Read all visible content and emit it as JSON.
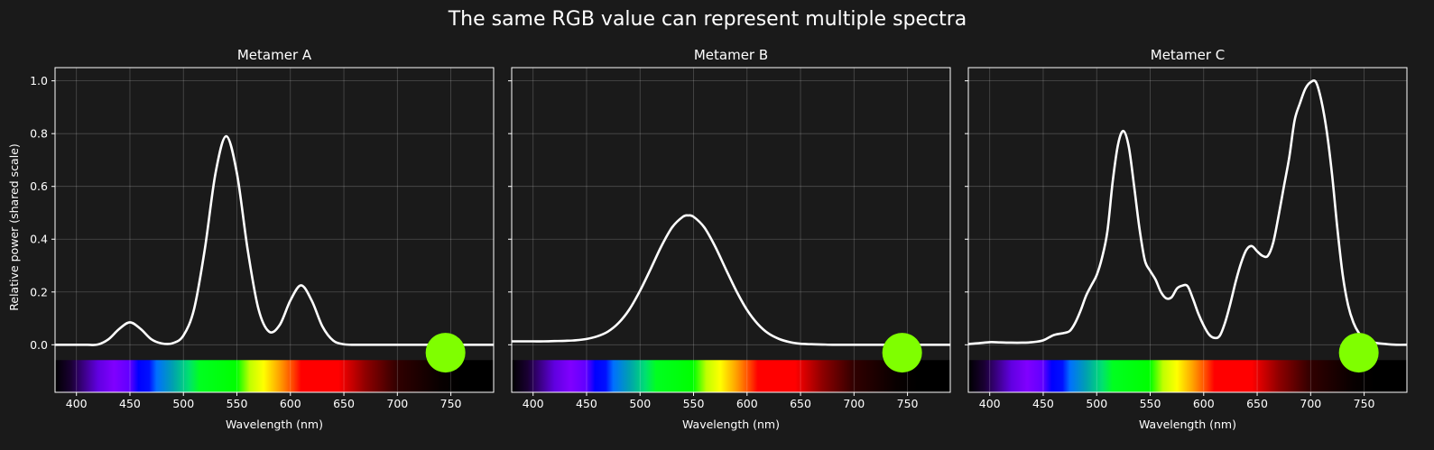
{
  "figure": {
    "title": "The same RGB value can represent multiple spectra",
    "background": "#1a1a1a"
  },
  "chart_data": [
    {
      "type": "line",
      "title": "Metamer A",
      "xlabel": "Wavelength (nm)",
      "ylabel": "Relative power (shared scale)",
      "xlim": [
        380,
        790
      ],
      "ylim": [
        -0.18,
        1.05
      ],
      "xticks": [
        400,
        450,
        500,
        550,
        600,
        650,
        700,
        750
      ],
      "yticks": [
        "0.0",
        "0.2",
        "0.4",
        "0.6",
        "0.8",
        "1.0"
      ],
      "grid": true,
      "line_color": "#ffffff",
      "points": [
        [
          380,
          0
        ],
        [
          390,
          0
        ],
        [
          400,
          0
        ],
        [
          410,
          0
        ],
        [
          420,
          0.001
        ],
        [
          430,
          0.021
        ],
        [
          440,
          0.06
        ],
        [
          450,
          0.085
        ],
        [
          460,
          0.06
        ],
        [
          470,
          0.021
        ],
        [
          480,
          0.005
        ],
        [
          490,
          0.006
        ],
        [
          500,
          0.035
        ],
        [
          510,
          0.136
        ],
        [
          520,
          0.362
        ],
        [
          530,
          0.65
        ],
        [
          540,
          0.79
        ],
        [
          550,
          0.65
        ],
        [
          560,
          0.362
        ],
        [
          570,
          0.138
        ],
        [
          580,
          0.05
        ],
        [
          590,
          0.075
        ],
        [
          600,
          0.168
        ],
        [
          610,
          0.225
        ],
        [
          620,
          0.167
        ],
        [
          630,
          0.069
        ],
        [
          640,
          0.016
        ],
        [
          650,
          0.002
        ],
        [
          660,
          0
        ],
        [
          670,
          0
        ],
        [
          680,
          0
        ],
        [
          690,
          0
        ],
        [
          700,
          0
        ],
        [
          710,
          0
        ],
        [
          720,
          0
        ],
        [
          730,
          0
        ],
        [
          740,
          0
        ],
        [
          750,
          0
        ],
        [
          760,
          0
        ],
        [
          770,
          0
        ],
        [
          780,
          0
        ],
        [
          790,
          0
        ]
      ],
      "rgb_swatch": {
        "color": "#7fff00",
        "x": 745,
        "y": -0.03
      },
      "spectrum_strip": {
        "y_range": [
          -0.18,
          -0.058
        ]
      }
    },
    {
      "type": "line",
      "title": "Metamer B",
      "xlabel": "Wavelength (nm)",
      "xlim": [
        380,
        790
      ],
      "ylim": [
        -0.18,
        1.05
      ],
      "xticks": [
        400,
        450,
        500,
        550,
        600,
        650,
        700,
        750
      ],
      "grid": true,
      "line_color": "#ffffff",
      "points": [
        [
          380,
          0.013
        ],
        [
          390,
          0.013
        ],
        [
          400,
          0.013
        ],
        [
          410,
          0.013
        ],
        [
          420,
          0.014
        ],
        [
          430,
          0.015
        ],
        [
          440,
          0.017
        ],
        [
          450,
          0.022
        ],
        [
          460,
          0.032
        ],
        [
          470,
          0.05
        ],
        [
          480,
          0.083
        ],
        [
          490,
          0.134
        ],
        [
          500,
          0.205
        ],
        [
          510,
          0.288
        ],
        [
          520,
          0.374
        ],
        [
          530,
          0.445
        ],
        [
          540,
          0.485
        ],
        [
          545,
          0.49
        ],
        [
          550,
          0.485
        ],
        [
          560,
          0.445
        ],
        [
          570,
          0.374
        ],
        [
          580,
          0.288
        ],
        [
          590,
          0.204
        ],
        [
          600,
          0.132
        ],
        [
          610,
          0.079
        ],
        [
          620,
          0.043
        ],
        [
          630,
          0.022
        ],
        [
          640,
          0.01
        ],
        [
          650,
          0.004
        ],
        [
          660,
          0.002
        ],
        [
          670,
          0.001
        ],
        [
          680,
          0
        ],
        [
          690,
          0
        ],
        [
          700,
          0
        ],
        [
          710,
          0
        ],
        [
          720,
          0
        ],
        [
          730,
          0
        ],
        [
          740,
          0
        ],
        [
          750,
          0
        ],
        [
          760,
          0
        ],
        [
          770,
          0
        ],
        [
          780,
          0
        ],
        [
          790,
          0
        ]
      ],
      "rgb_swatch": {
        "color": "#7fff00",
        "x": 745,
        "y": -0.03
      },
      "spectrum_strip": {
        "y_range": [
          -0.18,
          -0.058
        ]
      }
    },
    {
      "type": "line",
      "title": "Metamer C",
      "xlabel": "Wavelength (nm)",
      "xlim": [
        380,
        790
      ],
      "ylim": [
        -0.18,
        1.05
      ],
      "xticks": [
        400,
        450,
        500,
        550,
        600,
        650,
        700,
        750
      ],
      "grid": true,
      "line_color": "#ffffff",
      "points": [
        [
          380,
          0.003
        ],
        [
          390,
          0.006
        ],
        [
          400,
          0.01
        ],
        [
          410,
          0.009
        ],
        [
          420,
          0.008
        ],
        [
          430,
          0.008
        ],
        [
          440,
          0.01
        ],
        [
          450,
          0.017
        ],
        [
          460,
          0.037
        ],
        [
          470,
          0.045
        ],
        [
          475,
          0.053
        ],
        [
          480,
          0.084
        ],
        [
          485,
          0.13
        ],
        [
          490,
          0.185
        ],
        [
          495,
          0.225
        ],
        [
          500,
          0.264
        ],
        [
          505,
          0.33
        ],
        [
          510,
          0.43
        ],
        [
          515,
          0.62
        ],
        [
          520,
          0.76
        ],
        [
          525,
          0.81
        ],
        [
          530,
          0.75
        ],
        [
          535,
          0.6
        ],
        [
          540,
          0.44
        ],
        [
          545,
          0.32
        ],
        [
          550,
          0.28
        ],
        [
          555,
          0.247
        ],
        [
          560,
          0.2
        ],
        [
          565,
          0.176
        ],
        [
          570,
          0.18
        ],
        [
          575,
          0.213
        ],
        [
          580,
          0.224
        ],
        [
          585,
          0.222
        ],
        [
          590,
          0.174
        ],
        [
          595,
          0.118
        ],
        [
          600,
          0.073
        ],
        [
          605,
          0.039
        ],
        [
          610,
          0.026
        ],
        [
          615,
          0.034
        ],
        [
          620,
          0.084
        ],
        [
          625,
          0.157
        ],
        [
          630,
          0.24
        ],
        [
          635,
          0.31
        ],
        [
          640,
          0.36
        ],
        [
          645,
          0.374
        ],
        [
          650,
          0.354
        ],
        [
          655,
          0.337
        ],
        [
          660,
          0.337
        ],
        [
          665,
          0.387
        ],
        [
          670,
          0.488
        ],
        [
          675,
          0.6
        ],
        [
          680,
          0.71
        ],
        [
          685,
          0.85
        ],
        [
          690,
          0.915
        ],
        [
          695,
          0.97
        ],
        [
          700,
          0.995
        ],
        [
          705,
          0.995
        ],
        [
          710,
          0.925
        ],
        [
          715,
          0.81
        ],
        [
          720,
          0.645
        ],
        [
          725,
          0.44
        ],
        [
          730,
          0.264
        ],
        [
          735,
          0.15
        ],
        [
          740,
          0.084
        ],
        [
          745,
          0.045
        ],
        [
          750,
          0.022
        ],
        [
          760,
          0.008
        ],
        [
          770,
          0.003
        ],
        [
          780,
          0
        ],
        [
          790,
          0
        ]
      ],
      "rgb_swatch": {
        "color": "#7fff00",
        "x": 745,
        "y": -0.03
      },
      "spectrum_strip": {
        "y_range": [
          -0.18,
          -0.058
        ]
      }
    }
  ]
}
